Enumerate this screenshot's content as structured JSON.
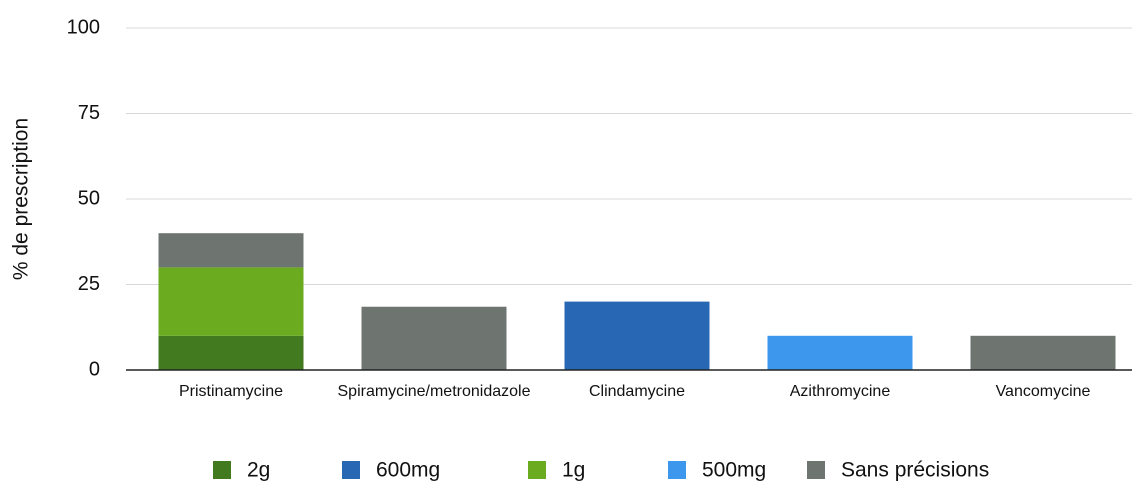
{
  "chart_data": {
    "type": "stacked_bar",
    "y_label": "% de prescription",
    "categories": [
      "Pristinamycine",
      "Spiramycine/metronidazole",
      "Clindamycine",
      "Azithromycine",
      "Vancomycine"
    ],
    "series": [
      {
        "name": "2g",
        "color": "#417a1f",
        "values": [
          10,
          null,
          null,
          null,
          null
        ]
      },
      {
        "name": "600mg",
        "color": "#2767b3",
        "values": [
          null,
          null,
          20,
          null,
          null
        ]
      },
      {
        "name": "1g",
        "color": "#6aab1f",
        "values": [
          20,
          null,
          null,
          null,
          null
        ]
      },
      {
        "name": "500mg",
        "color": "#3d97ec",
        "values": [
          null,
          null,
          null,
          10,
          null
        ]
      },
      {
        "name": "Sans précisions",
        "color": "#6e7470",
        "values": [
          10,
          18.5,
          null,
          null,
          10
        ]
      }
    ],
    "ylim": [
      0,
      100
    ],
    "yticks": [
      0,
      25,
      50,
      75,
      100
    ],
    "grid": true,
    "legend": "bottom"
  }
}
